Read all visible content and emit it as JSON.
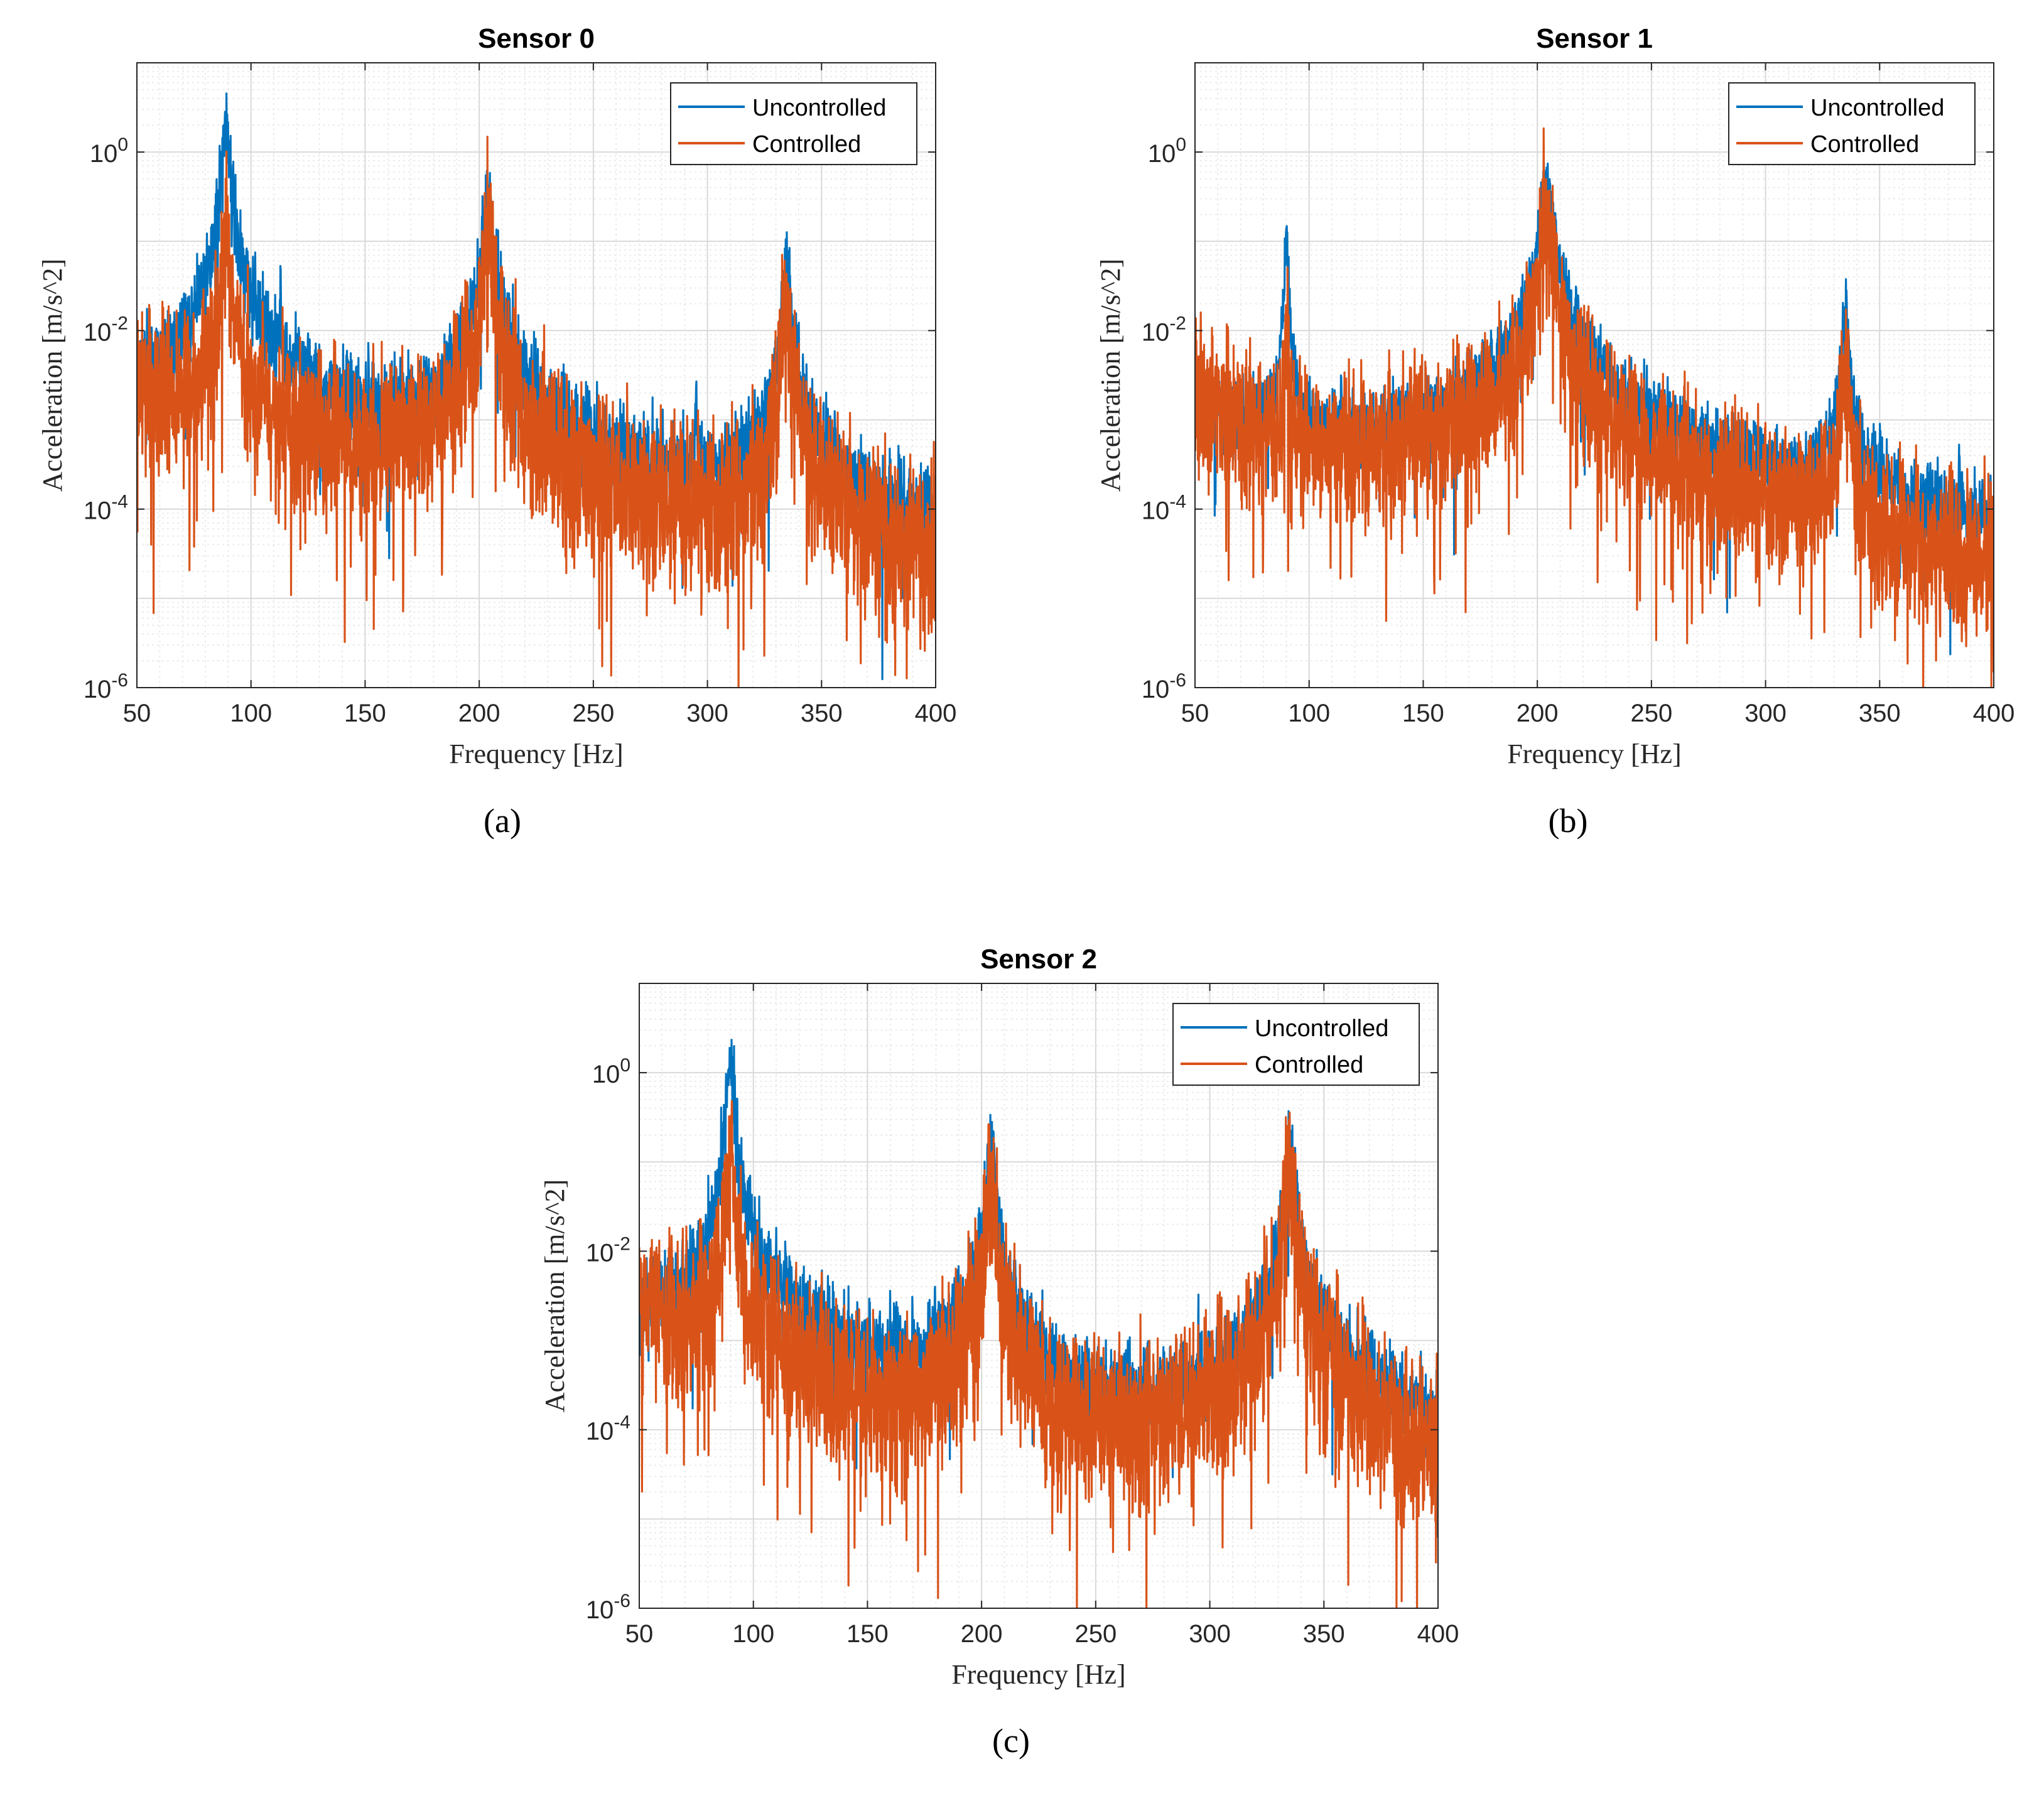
{
  "figure": {
    "panel_labels": [
      "(a)",
      "(b)",
      "(c)"
    ]
  },
  "colors": {
    "uncontrolled": "#0072BD",
    "controlled": "#D95319",
    "grid_major": "#d9d9d9",
    "grid_minor": "#ebebeb",
    "axes": "#262626"
  },
  "chart_data": [
    {
      "type": "line",
      "id": "a",
      "title": "Sensor 0",
      "xlabel": "Frequency [Hz]",
      "ylabel": "Acceleration [m/s^2]",
      "xscale": "linear",
      "yscale": "log",
      "xlim": [
        50,
        400
      ],
      "ylim": [
        1e-06,
        10
      ],
      "xticks": [
        50,
        100,
        150,
        200,
        250,
        300,
        350,
        400
      ],
      "yticks": [
        {
          "value": 1e-06,
          "exp": "-6"
        },
        {
          "value": 0.0001,
          "exp": "-4"
        },
        {
          "value": 0.01,
          "exp": "-2"
        },
        {
          "value": 1,
          "exp": "0"
        }
      ],
      "grid": true,
      "legend_position": "top-right",
      "series": [
        {
          "name": "Uncontrolled",
          "color": "#0072BD",
          "baseline": [
            [
              50,
              0.002
            ],
            [
              70,
              0.0012
            ],
            [
              85,
              0.002
            ],
            [
              110,
              0.001
            ],
            [
              150,
              0.00045
            ],
            [
              180,
              0.00045
            ],
            [
              200,
              0.001
            ],
            [
              215,
              0.0004
            ],
            [
              240,
              0.0002
            ],
            [
              270,
              0.00011
            ],
            [
              300,
              8e-05
            ],
            [
              320,
              0.00012
            ],
            [
              345,
              0.00015
            ],
            [
              365,
              4e-05
            ],
            [
              380,
              1.5e-05
            ],
            [
              400,
              1e-05
            ]
          ],
          "peaks": [
            [
              89,
              2.0,
              1.2
            ],
            [
              204,
              0.28,
              1.6
            ],
            [
              335,
              0.045,
              1.4
            ]
          ],
          "spikes": [
            [
              113,
              0.015
            ],
            [
              126,
              0.001
            ],
            [
              180,
              0.0008
            ],
            [
              223,
              0.001
            ],
            [
              247,
              0.0005
            ],
            [
              270,
              0.00015
            ],
            [
              295,
              0.0018
            ],
            [
              384,
              0.0002
            ]
          ],
          "noise": 0.25,
          "dips": 0.01,
          "seed": 11
        },
        {
          "name": "Controlled",
          "color": "#D95319",
          "baseline": [
            [
              50,
              0.003
            ],
            [
              70,
              0.0013
            ],
            [
              100,
              0.001
            ],
            [
              150,
              0.0004
            ],
            [
              180,
              0.0005
            ],
            [
              200,
              0.001
            ],
            [
              215,
              0.0003
            ],
            [
              240,
              0.00012
            ],
            [
              280,
              6e-05
            ],
            [
              320,
              5e-05
            ],
            [
              345,
              8e-05
            ],
            [
              365,
              3e-05
            ],
            [
              400,
              1.8e-05
            ]
          ],
          "peaks": [
            [
              89,
              0.18,
              1.0
            ],
            [
              204,
              0.13,
              1.4
            ],
            [
              335,
              0.02,
              1.3
            ]
          ],
          "spikes": [],
          "noise": 0.45,
          "dips": 0.05,
          "seed": 29
        }
      ]
    },
    {
      "type": "line",
      "id": "b",
      "title": "Sensor 1",
      "xlabel": "Frequency [Hz]",
      "ylabel": "Acceleration [m/s^2]",
      "xscale": "linear",
      "yscale": "log",
      "xlim": [
        50,
        400
      ],
      "ylim": [
        1e-06,
        10
      ],
      "xticks": [
        50,
        100,
        150,
        200,
        250,
        300,
        350,
        400
      ],
      "yticks": [
        {
          "value": 1e-06,
          "exp": "-6"
        },
        {
          "value": 0.0001,
          "exp": "-4"
        },
        {
          "value": 0.01,
          "exp": "-2"
        },
        {
          "value": 1,
          "exp": "0"
        }
      ],
      "grid": true,
      "legend_position": "top-right",
      "series": [
        {
          "name": "Uncontrolled",
          "color": "#0072BD",
          "baseline": [
            [
              50,
              0.0015
            ],
            [
              80,
              0.0007
            ],
            [
              110,
              0.0005
            ],
            [
              150,
              0.0005
            ],
            [
              180,
              0.0007
            ],
            [
              200,
              0.0015
            ],
            [
              215,
              0.0008
            ],
            [
              250,
              0.0003
            ],
            [
              300,
              0.00012
            ],
            [
              325,
              7e-05
            ],
            [
              340,
              6e-05
            ],
            [
              370,
              4e-05
            ],
            [
              400,
              2.8e-05
            ]
          ],
          "peaks": [
            [
              90,
              0.11,
              0.6
            ],
            [
              204,
              0.45,
              2.0
            ],
            [
              335,
              0.015,
              1.2
            ]
          ],
          "spikes": [
            [
              114,
              0.0015
            ],
            [
              180,
              0.0018
            ],
            [
              223,
              0.001
            ],
            [
              247,
              0.0005
            ],
            [
              295,
              0.0007
            ],
            [
              320,
              0.0002
            ],
            [
              350,
              0.00015
            ],
            [
              385,
              0.0002
            ]
          ],
          "noise": 0.2,
          "dips": 0.01,
          "seed": 37
        },
        {
          "name": "Controlled",
          "color": "#D95319",
          "baseline": [
            [
              50,
              0.002
            ],
            [
              80,
              0.0006
            ],
            [
              120,
              0.0004
            ],
            [
              160,
              0.0004
            ],
            [
              190,
              0.0008
            ],
            [
              205,
              0.0015
            ],
            [
              220,
              0.0004
            ],
            [
              250,
              0.00018
            ],
            [
              290,
              7e-05
            ],
            [
              325,
              4e-05
            ],
            [
              340,
              3e-05
            ],
            [
              360,
              1.2e-05
            ],
            [
              400,
              1e-05
            ]
          ],
          "peaks": [
            [
              90,
              0.015,
              0.5
            ],
            [
              204,
              0.2,
              1.8
            ],
            [
              335,
              0.004,
              1.2
            ]
          ],
          "spikes": [],
          "noise": 0.4,
          "dips": 0.04,
          "seed": 53
        }
      ]
    },
    {
      "type": "line",
      "id": "c",
      "title": "Sensor 2",
      "xlabel": "Frequency [Hz]",
      "ylabel": "Acceleration [m/s^2]",
      "xscale": "linear",
      "yscale": "log",
      "xlim": [
        50,
        400
      ],
      "ylim": [
        1e-06,
        10
      ],
      "xticks": [
        50,
        100,
        150,
        200,
        250,
        300,
        350,
        400
      ],
      "yticks": [
        {
          "value": 1e-06,
          "exp": "-6"
        },
        {
          "value": 0.0001,
          "exp": "-4"
        },
        {
          "value": 0.01,
          "exp": "-2"
        },
        {
          "value": 1,
          "exp": "0"
        }
      ],
      "grid": true,
      "legend_position": "top-right",
      "series": [
        {
          "name": "Uncontrolled",
          "color": "#0072BD",
          "baseline": [
            [
              50,
              0.0015
            ],
            [
              80,
              0.001
            ],
            [
              110,
              0.0006
            ],
            [
              150,
              0.0003
            ],
            [
              180,
              0.0004
            ],
            [
              200,
              0.0008
            ],
            [
              215,
              0.0002
            ],
            [
              240,
              4e-05
            ],
            [
              260,
              6e-05
            ],
            [
              290,
              8e-05
            ],
            [
              320,
              0.00025
            ],
            [
              345,
              0.0003
            ],
            [
              370,
              0.00015
            ],
            [
              400,
              5e-05
            ]
          ],
          "peaks": [
            [
              90,
              1.3,
              1.1
            ],
            [
              204,
              0.13,
              1.5
            ],
            [
              335,
              0.14,
              1.5
            ]
          ],
          "spikes": [
            [
              114,
              0.01
            ],
            [
              180,
              0.0015
            ],
            [
              244,
              0.0002
            ],
            [
              270,
              0.00013
            ],
            [
              295,
              0.0013
            ],
            [
              350,
              0.0004
            ],
            [
              384,
              0.0002
            ]
          ],
          "noise": 0.25,
          "dips": 0.01,
          "seed": 71
        },
        {
          "name": "Controlled",
          "color": "#D95319",
          "baseline": [
            [
              50,
              0.004
            ],
            [
              70,
              0.0015
            ],
            [
              100,
              0.001
            ],
            [
              130,
              0.0003
            ],
            [
              170,
              0.0001
            ],
            [
              200,
              0.0004
            ],
            [
              215,
              0.00015
            ],
            [
              240,
              7e-05
            ],
            [
              280,
              7e-05
            ],
            [
              320,
              0.0002
            ],
            [
              345,
              8e-05
            ],
            [
              375,
              3e-05
            ],
            [
              400,
              2e-05
            ]
          ],
          "peaks": [
            [
              90,
              0.17,
              1.0
            ],
            [
              204,
              0.055,
              1.3
            ],
            [
              335,
              0.08,
              1.4
            ]
          ],
          "spikes": [],
          "noise": 0.45,
          "dips": 0.05,
          "seed": 89
        }
      ]
    }
  ]
}
